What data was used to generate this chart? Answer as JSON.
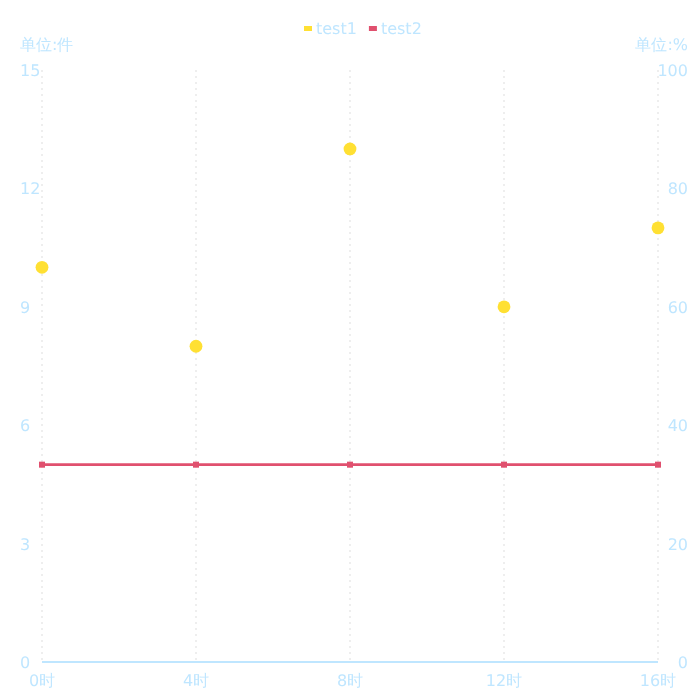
{
  "chart_data": {
    "type": "line",
    "categories": [
      "0时",
      "4时",
      "8时",
      "12时",
      "16时"
    ],
    "ylabel": "单位:件",
    "y2label": "单位:%",
    "ylim": [
      0,
      15
    ],
    "yticks": [
      0,
      3,
      6,
      9,
      12,
      15
    ],
    "y2lim": [
      0,
      100
    ],
    "y2ticks": [
      0,
      20,
      40,
      60,
      80,
      100
    ],
    "series": [
      {
        "name": "test1",
        "type": "scatter",
        "color": "#ffe033",
        "marker": "circle",
        "values": [
          10,
          8,
          13,
          9,
          11
        ]
      },
      {
        "name": "test2",
        "color": "#e0506e",
        "marker": "square",
        "values": [
          5,
          5,
          5,
          5,
          5
        ]
      }
    ],
    "legend": "top",
    "grid": "x"
  }
}
